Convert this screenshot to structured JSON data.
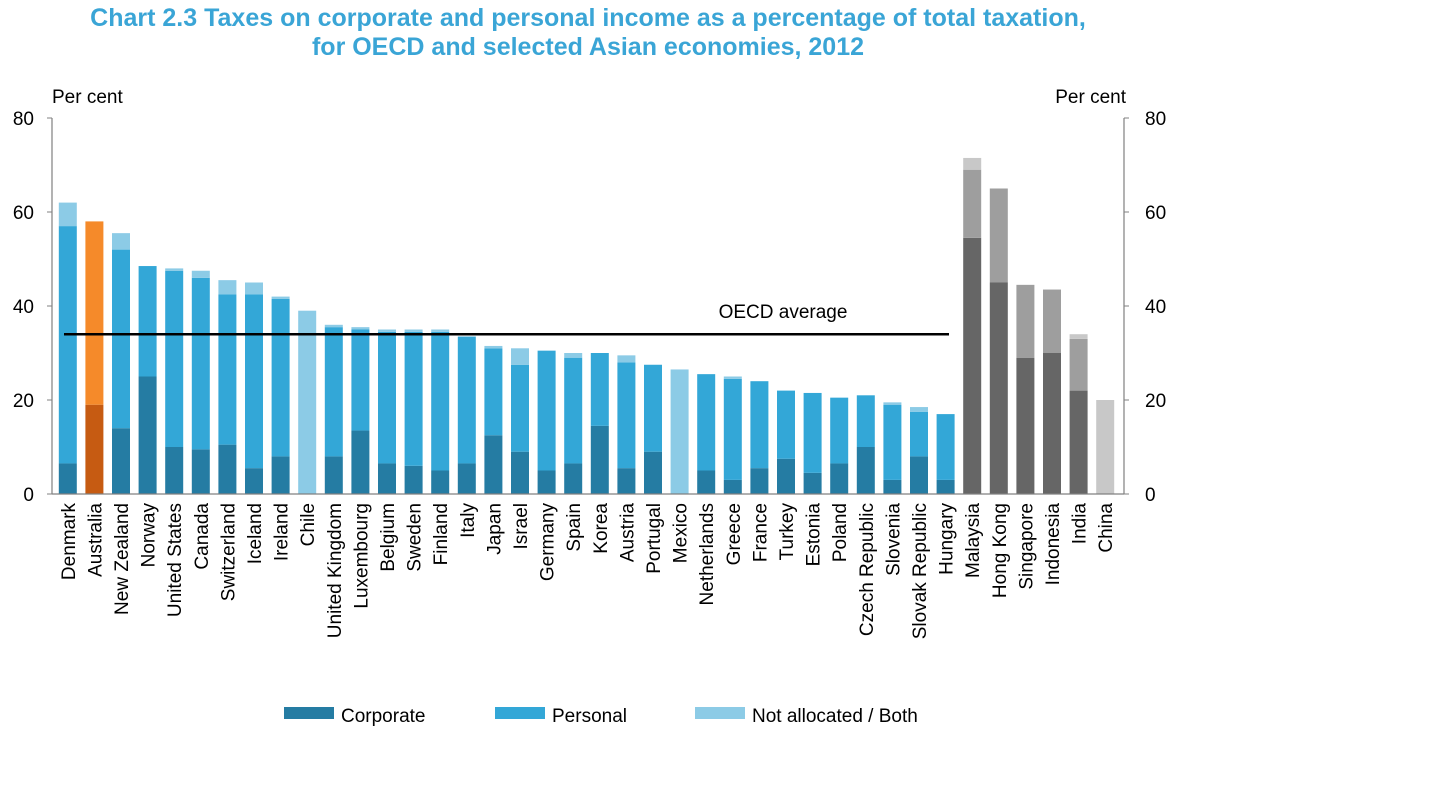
{
  "chart_data": {
    "type": "bar",
    "stacked": true,
    "title": "Chart 2.3 Taxes on corporate and personal income as a percentage of total taxation,",
    "subtitle": "for OECD and selected Asian economies, 2012",
    "ylabel_left": "Per cent",
    "ylabel_right": "Per cent",
    "xlabel": "",
    "ylim": [
      0,
      80
    ],
    "yticks": [
      "0",
      "20",
      "40",
      "60",
      "80"
    ],
    "grid": false,
    "legend_position": "bottom",
    "categories": [
      "Denmark",
      "Australia",
      "New Zealand",
      "Norway",
      "United States",
      "Canada",
      "Switzerland",
      "Iceland",
      "Ireland",
      "Chile",
      "United Kingdom",
      "Luxembourg",
      "Belgium",
      "Sweden",
      "Finland",
      "Italy",
      "Japan",
      "Israel",
      "Germany",
      "Spain",
      "Korea",
      "Austria",
      "Portugal",
      "Mexico",
      "Netherlands",
      "Greece",
      "France",
      "Turkey",
      "Estonia",
      "Poland",
      "Czech Republic",
      "Slovenia",
      "Slovak Republic",
      "Hungary",
      "Malaysia",
      "Hong Kong",
      "Singapore",
      "Indonesia",
      "India",
      "China"
    ],
    "groups": {
      "oecd": [
        "Denmark",
        "New Zealand",
        "Norway",
        "United States",
        "Canada",
        "Switzerland",
        "Iceland",
        "Ireland",
        "Chile",
        "United Kingdom",
        "Luxembourg",
        "Belgium",
        "Sweden",
        "Finland",
        "Italy",
        "Japan",
        "Israel",
        "Germany",
        "Spain",
        "Korea",
        "Austria",
        "Portugal",
        "Mexico",
        "Netherlands",
        "Greece",
        "France",
        "Turkey",
        "Estonia",
        "Poland",
        "Czech Republic",
        "Slovenia",
        "Slovak Republic",
        "Hungary"
      ],
      "highlight": [
        "Australia"
      ],
      "asian": [
        "Malaysia",
        "Hong Kong",
        "Singapore",
        "Indonesia",
        "India",
        "China"
      ]
    },
    "series": [
      {
        "name": "Corporate",
        "values": [
          6.5,
          19,
          14,
          25,
          10,
          9.5,
          10.5,
          5.5,
          8,
          0,
          8,
          13.5,
          6.5,
          6,
          5,
          6.5,
          12.5,
          9,
          5,
          6.5,
          14.5,
          5.5,
          9,
          0,
          5,
          3,
          5.5,
          7.5,
          4.5,
          6.5,
          10,
          3,
          8,
          3,
          54.5,
          45,
          29,
          30,
          22,
          0
        ]
      },
      {
        "name": "Personal",
        "values": [
          50.5,
          39,
          38,
          23.5,
          37.5,
          36.5,
          32,
          37,
          33.5,
          0,
          27.5,
          21.5,
          28,
          28.5,
          29.5,
          27,
          18.5,
          18.5,
          25.5,
          22.5,
          15.5,
          22.5,
          18.5,
          0,
          20.5,
          21.5,
          18.5,
          14.5,
          17,
          14,
          11,
          16,
          9.5,
          14,
          14.5,
          20,
          15.5,
          13.5,
          11,
          0
        ]
      },
      {
        "name": "Not allocated / Both",
        "values": [
          5,
          0,
          3.5,
          0,
          0.5,
          1.5,
          3,
          2.5,
          0.5,
          39,
          0.5,
          0.5,
          0.5,
          0.5,
          0.5,
          0,
          0.5,
          3.5,
          0,
          1,
          0,
          1.5,
          0,
          26.5,
          0,
          0.5,
          0,
          0,
          0,
          0,
          0,
          0.5,
          1,
          0,
          2.5,
          0,
          0,
          0,
          1,
          20
        ]
      }
    ],
    "reference_line": {
      "label": "OECD average",
      "value": 34
    },
    "colors": {
      "corporate": "#257ca3",
      "personal": "#33a7d7",
      "not_allocated": "#8ccbe6",
      "australia_corporate": "#c65b12",
      "australia_personal": "#f58a2a",
      "asian_corporate": "#666666",
      "asian_personal": "#9e9e9e",
      "asian_not_allocated": "#c8c8c8",
      "reference_line": "#000000",
      "title": "#3aa5d6",
      "axis": "#808080"
    }
  }
}
